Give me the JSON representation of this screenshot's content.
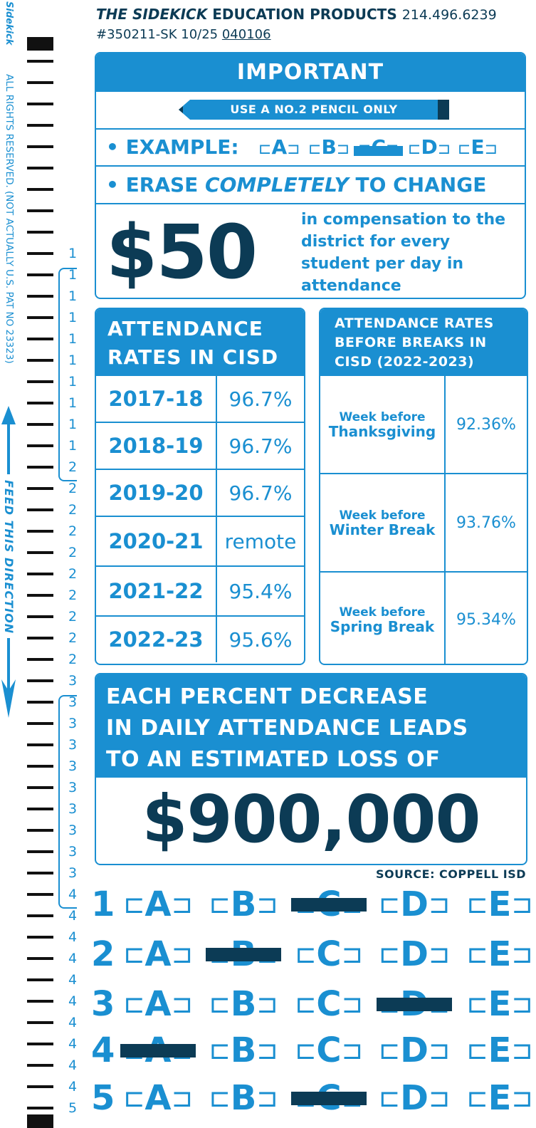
{
  "side": {
    "brand": "Sidekick",
    "rights": "ALL RIGHTS RESERVED. (NOT ACTUALLY U.S. PAT NO 23323)",
    "feed": "FEED THIS DIRECTION",
    "row_numbers": [
      "1",
      "1",
      "1",
      "1",
      "1",
      "1",
      "1",
      "1",
      "1",
      "1",
      "2",
      "2",
      "2",
      "2",
      "2",
      "2",
      "2",
      "2",
      "2",
      "2",
      "3",
      "3",
      "3",
      "3",
      "3",
      "3",
      "3",
      "3",
      "3",
      "3",
      "4",
      "4",
      "4",
      "4",
      "4",
      "4",
      "4",
      "4",
      "4",
      "4",
      "5"
    ]
  },
  "header": {
    "brand": "THE SIDEKICK",
    "product": "EDUCATION PRODUCTS",
    "phone": "214.496.6239",
    "code_prefix": "#350211-SK 10/25",
    "code_underlined": "040106"
  },
  "important": {
    "title": "IMPORTANT",
    "pencil_label": "USE A NO.2 PENCIL ONLY",
    "example_label": "• EXAMPLE:",
    "example_letters": [
      "A",
      "B",
      "C",
      "D",
      "E"
    ],
    "example_filled": "C",
    "erase_prefix": "• ERASE ",
    "erase_emph": "COMPLETELY",
    "erase_suffix": " TO CHANGE",
    "amount": "$50",
    "amount_text": "in compensation to the district for every student per day in attendance"
  },
  "left_table": {
    "title_line1": "ATTENDANCE",
    "title_line2": "RATES IN CISD",
    "rows": [
      {
        "year": "2017-18",
        "value": "96.7%"
      },
      {
        "year": "2018-19",
        "value": "96.7%"
      },
      {
        "year": "2019-20",
        "value": "96.7%"
      },
      {
        "year": "2020-21",
        "value": "remote"
      },
      {
        "year": "2021-22",
        "value": "95.4%"
      },
      {
        "year": "2022-23",
        "value": "95.6%"
      }
    ]
  },
  "right_table": {
    "title_line1": "ATTENDANCE RATES",
    "title_line2": "BEFORE BREAKS IN",
    "title_line3": "CISD (2022-2023)",
    "rows": [
      {
        "small": "Week before",
        "large": "Thanksgiving",
        "value": "92.36%"
      },
      {
        "small": "Week before",
        "large": "Winter Break",
        "value": "93.76%"
      },
      {
        "small": "Week before",
        "large": "Spring Break",
        "value": "95.34%"
      }
    ]
  },
  "loss": {
    "line1": "EACH PERCENT DECREASE",
    "line2": "IN DAILY ATTENDANCE LEADS",
    "line3": "TO AN ESTIMATED LOSS OF",
    "amount": "$900,000",
    "source": "SOURCE: COPPELL ISD"
  },
  "answers": [
    {
      "num": "1",
      "letters": [
        "A",
        "B",
        "C",
        "D",
        "E"
      ],
      "filled": "C"
    },
    {
      "num": "2",
      "letters": [
        "A",
        "B",
        "C",
        "D",
        "E"
      ],
      "filled": "B"
    },
    {
      "num": "3",
      "letters": [
        "A",
        "B",
        "C",
        "D",
        "E"
      ],
      "filled": "D"
    },
    {
      "num": "4",
      "letters": [
        "A",
        "B",
        "C",
        "D",
        "E"
      ],
      "filled": "A"
    },
    {
      "num": "5",
      "letters": [
        "A",
        "B",
        "C",
        "D",
        "E"
      ],
      "filled": "C"
    }
  ],
  "colors": {
    "blue": "#1a8fd1",
    "navy": "#0c3b55",
    "black": "#111111"
  }
}
